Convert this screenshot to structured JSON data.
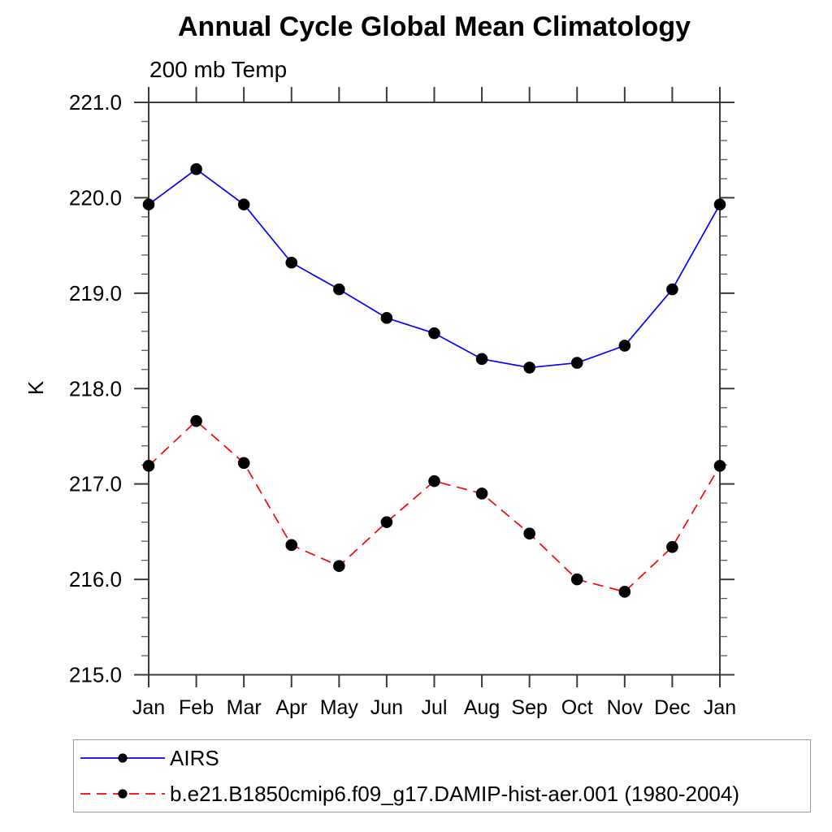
{
  "chart_data": {
    "type": "line",
    "title": "Annual Cycle Global Mean Climatology",
    "subtitle": "200 mb Temp",
    "ylabel": "K",
    "xlabel": "",
    "ylim": [
      215.0,
      221.0
    ],
    "ytick_labels": [
      "215.0",
      "216.0",
      "217.0",
      "218.0",
      "219.0",
      "220.0",
      "221.0"
    ],
    "ymajor_step": 1.0,
    "yminor_step": 0.2,
    "grid": false,
    "legend_position": "bottom-left",
    "categories": [
      "Jan",
      "Feb",
      "Mar",
      "Apr",
      "May",
      "Jun",
      "Jul",
      "Aug",
      "Sep",
      "Oct",
      "Nov",
      "Dec",
      "Jan"
    ],
    "series": [
      {
        "name": "AIRS",
        "color": "#0000ff",
        "line_style": "solid",
        "marker": "filled-circle",
        "marker_color": "#000000",
        "values": [
          219.93,
          220.3,
          219.93,
          219.32,
          219.04,
          218.74,
          218.58,
          218.31,
          218.22,
          218.27,
          218.45,
          219.04,
          219.93
        ]
      },
      {
        "name": "b.e21.B1850cmip6.f09_g17.DAMIP-hist-aer.001 (1980-2004)",
        "color": "#ff0000",
        "line_style": "dashed",
        "marker": "filled-circle",
        "marker_color": "#000000",
        "values": [
          217.19,
          217.66,
          217.22,
          216.36,
          216.14,
          216.6,
          217.03,
          216.9,
          216.48,
          216.0,
          215.87,
          216.34,
          217.19
        ]
      }
    ]
  }
}
